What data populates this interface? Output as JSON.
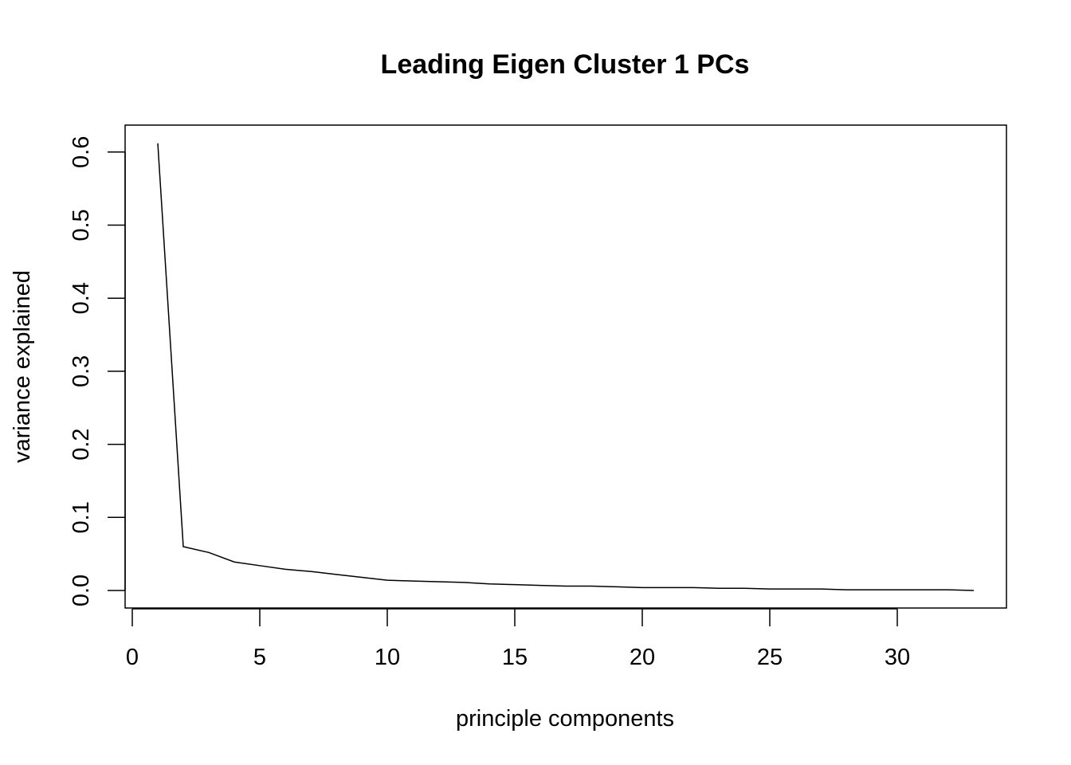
{
  "chart_data": {
    "type": "line",
    "title": "Leading Eigen Cluster 1 PCs",
    "xlabel": "principle components",
    "ylabel": "variance explained",
    "xlim": [
      0,
      33
    ],
    "ylim": [
      0,
      0.61
    ],
    "x_ticks": [
      0,
      5,
      10,
      15,
      20,
      25,
      30
    ],
    "y_ticks": [
      0.0,
      0.1,
      0.2,
      0.3,
      0.4,
      0.5,
      0.6
    ],
    "x_tick_labels": [
      "0",
      "5",
      "10",
      "15",
      "20",
      "25",
      "30"
    ],
    "y_tick_labels": [
      "0.0",
      "0.1",
      "0.2",
      "0.3",
      "0.4",
      "0.5",
      "0.6"
    ],
    "grid": false,
    "legend": "none",
    "line_color": "#000000",
    "series": [
      {
        "x": [
          1,
          2,
          3,
          4,
          5,
          6,
          7,
          8,
          9,
          10,
          11,
          12,
          13,
          14,
          15,
          16,
          17,
          18,
          19,
          20,
          21,
          22,
          23,
          24,
          25,
          26,
          27,
          28,
          29,
          30,
          31,
          32,
          33
        ],
        "values": [
          0.612,
          0.06,
          0.052,
          0.039,
          0.034,
          0.029,
          0.026,
          0.022,
          0.018,
          0.014,
          0.013,
          0.012,
          0.011,
          0.009,
          0.008,
          0.007,
          0.006,
          0.006,
          0.005,
          0.004,
          0.004,
          0.004,
          0.003,
          0.003,
          0.002,
          0.002,
          0.002,
          0.001,
          0.001,
          0.001,
          0.001,
          0.001,
          0.0
        ]
      }
    ]
  }
}
